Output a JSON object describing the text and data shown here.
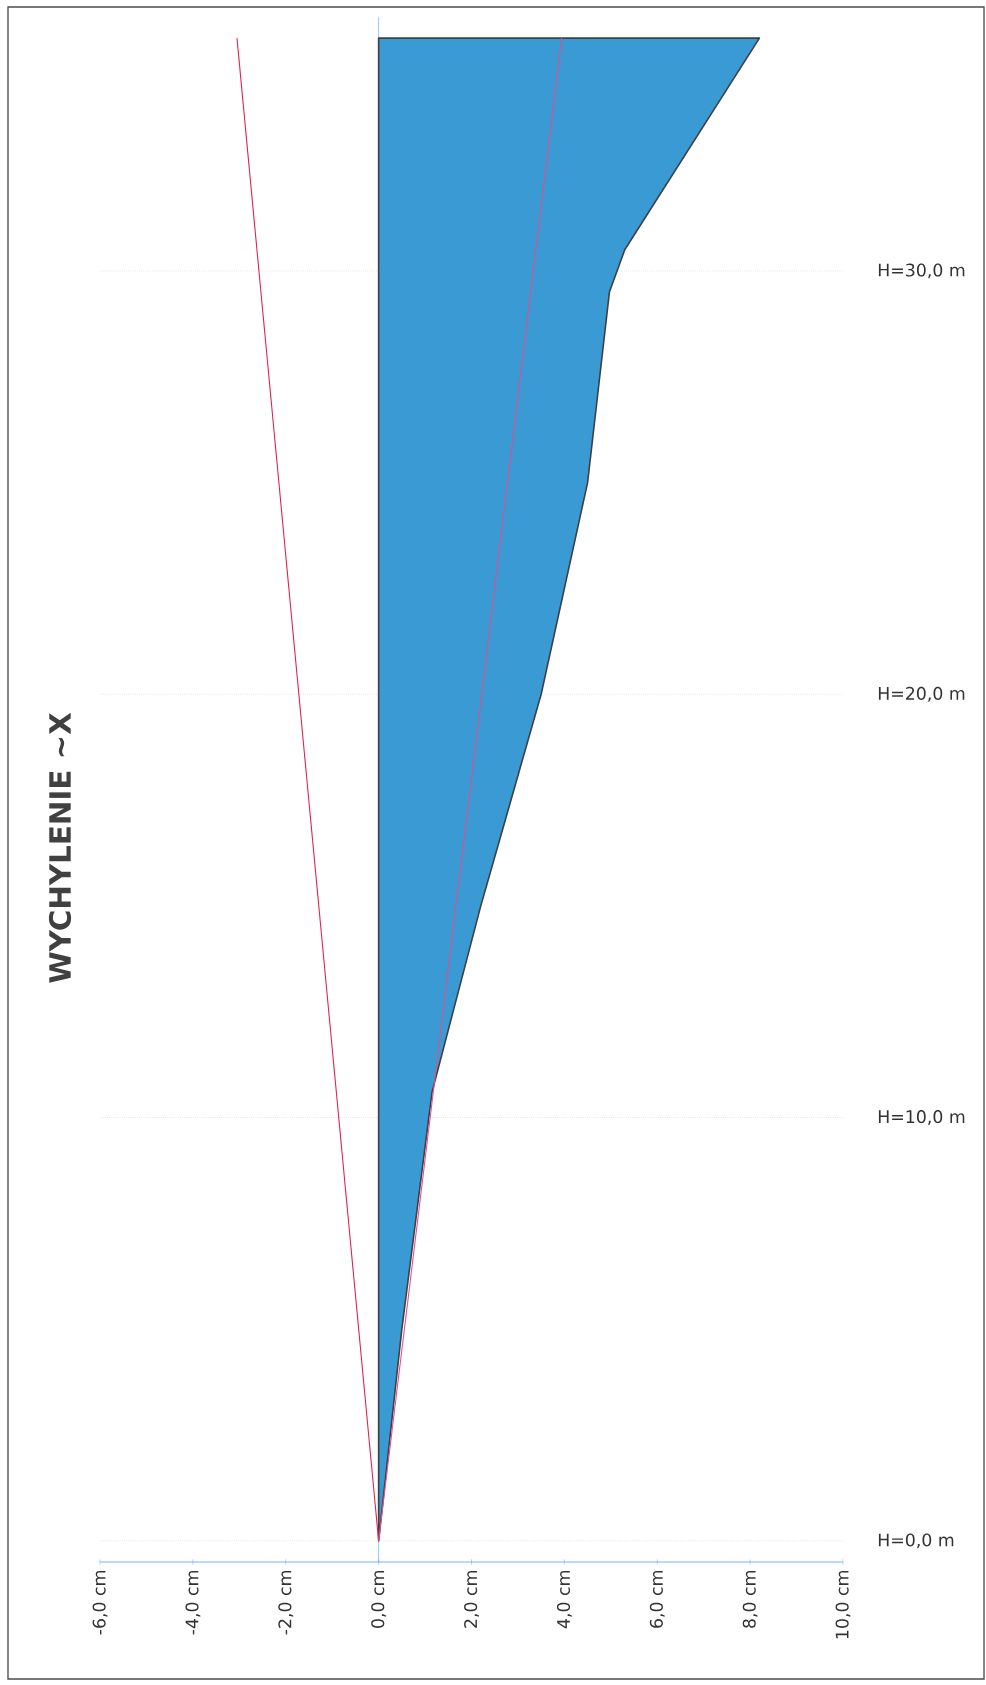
{
  "chart_data": {
    "type": "area",
    "orientation": "horizontal",
    "title": "WYCHYLENIE ~X",
    "xlim": [
      -6,
      10
    ],
    "ylim": [
      -0.5,
      36
    ],
    "xticks": [
      {
        "value": -6,
        "label": "-6,0 cm"
      },
      {
        "value": -4,
        "label": "-4,0 cm"
      },
      {
        "value": -2,
        "label": "-2,0 cm"
      },
      {
        "value": 0,
        "label": "0,0 cm"
      },
      {
        "value": 2,
        "label": "2,0 cm"
      },
      {
        "value": 4,
        "label": "4,0 cm"
      },
      {
        "value": 6,
        "label": "6,0 cm"
      },
      {
        "value": 8,
        "label": "8,0 cm"
      },
      {
        "value": 10,
        "label": "10,0 cm"
      }
    ],
    "yticks": [
      {
        "value": 0,
        "label": "H=0,0 m"
      },
      {
        "value": 10,
        "label": "H=10,0 m"
      },
      {
        "value": 20,
        "label": "H=20,0 m"
      },
      {
        "value": 30,
        "label": "H=30,0 m"
      }
    ],
    "grid": "y",
    "ref_lines": [
      {
        "axis": "x",
        "value": 0,
        "color": "#3399ff"
      }
    ],
    "series": [
      {
        "color": "#3a9ad4",
        "x": [
          0,
          5,
          10.6,
          15,
          20,
          25,
          29.5,
          30.5,
          35.5
        ],
        "values": [
          0,
          0.5,
          1.15,
          2.2,
          3.5,
          4.5,
          4.97,
          5.3,
          8.2
        ]
      },
      {
        "type": "line",
        "color": "#e0204a",
        "x": [
          0,
          35.5
        ],
        "values": [
          0,
          -3.05
        ]
      },
      {
        "type": "line",
        "color": "#e05090",
        "x": [
          0,
          35.5
        ],
        "values": [
          0,
          3.94
        ]
      }
    ]
  }
}
